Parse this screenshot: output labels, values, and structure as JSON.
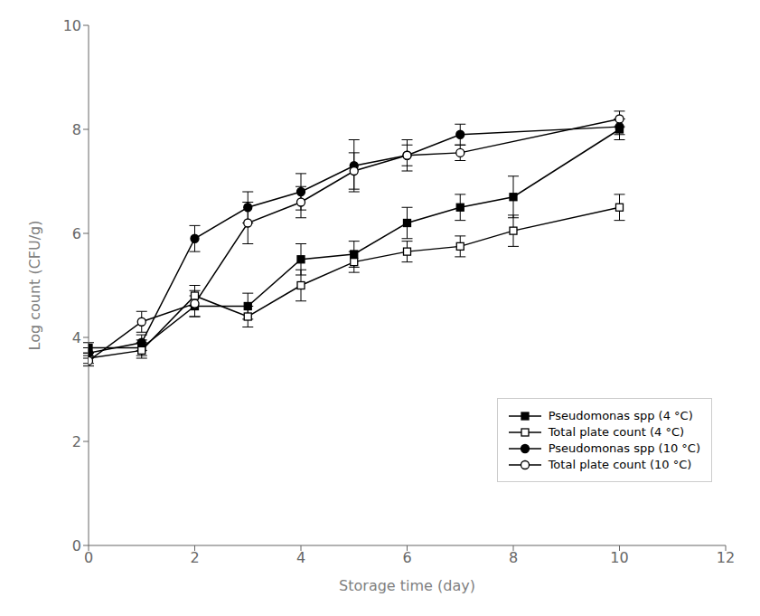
{
  "chart_data": {
    "type": "line",
    "xlabel": "Storage time (day)",
    "ylabel": "Log count (CFU/g)",
    "xlim": [
      0,
      12
    ],
    "ylim": [
      0,
      10
    ],
    "xticks": [
      0,
      2,
      4,
      6,
      8,
      10,
      12
    ],
    "yticks": [
      0,
      2,
      4,
      6,
      8,
      10
    ],
    "grid": false,
    "legend": "lower right",
    "series": [
      {
        "name": "Pseudomonas spp (4 °C)",
        "color": "#000000",
        "marker": "square",
        "line_style": "solid",
        "x": [
          0,
          1,
          2,
          3,
          4,
          5,
          6,
          7,
          8,
          10
        ],
        "values": [
          3.8,
          3.8,
          4.6,
          4.6,
          5.5,
          5.6,
          6.2,
          6.5,
          6.7,
          8.0
        ],
        "yerr": [
          0.1,
          0.15,
          0.2,
          0.25,
          0.3,
          0.25,
          0.3,
          0.25,
          0.4,
          0.2
        ]
      },
      {
        "name": "Total plate count (4 °C)",
        "color": "#000000",
        "marker": "square_open",
        "line_style": "solid",
        "x": [
          0,
          1,
          2,
          3,
          4,
          5,
          6,
          7,
          8,
          10
        ],
        "values": [
          3.6,
          3.75,
          4.8,
          4.4,
          5.0,
          5.45,
          5.65,
          5.75,
          6.05,
          6.5
        ],
        "yerr": [
          0.1,
          0.15,
          0.2,
          0.2,
          0.3,
          0.2,
          0.2,
          0.2,
          0.3,
          0.25
        ]
      },
      {
        "name": "Pseudomonas spp (10 °C)",
        "color": "#000000",
        "marker": "circle",
        "line_style": "solid",
        "x": [
          0,
          1,
          2,
          3,
          4,
          5,
          6,
          7,
          10
        ],
        "values": [
          3.7,
          3.9,
          5.9,
          6.5,
          6.8,
          7.3,
          7.5,
          7.9,
          8.05
        ],
        "yerr": [
          0.1,
          0.15,
          0.25,
          0.3,
          0.35,
          0.5,
          0.3,
          0.2,
          0.15
        ]
      },
      {
        "name": "Total plate count (10 °C)",
        "color": "#000000",
        "marker": "circle_open",
        "line_style": "solid",
        "x": [
          0,
          1,
          2,
          3,
          4,
          5,
          6,
          7,
          10
        ],
        "values": [
          3.55,
          4.3,
          4.65,
          6.2,
          6.6,
          7.2,
          7.5,
          7.55,
          8.2
        ],
        "yerr": [
          0.1,
          0.2,
          0.25,
          0.4,
          0.3,
          0.35,
          0.2,
          0.15,
          0.15
        ]
      }
    ]
  }
}
